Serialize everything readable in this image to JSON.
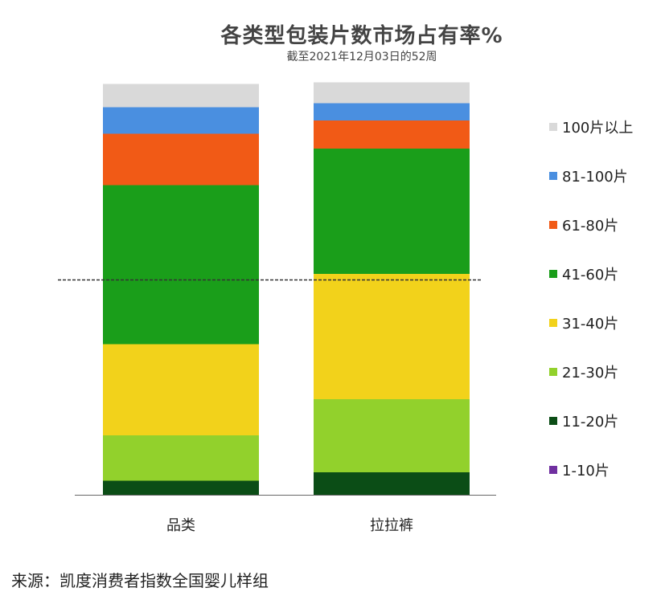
{
  "chart_data": {
    "type": "bar",
    "stacked": true,
    "normalized_percent": true,
    "title": "各类型包装片数市场占有率%",
    "subtitle": "截至2021年12月03日的52周",
    "categories": [
      "品类",
      "拉拉裤"
    ],
    "ylim": [
      0,
      100
    ],
    "grid": false,
    "legend_position": "right",
    "reference_line": {
      "value": 53.5,
      "style": "dashed"
    },
    "series": [
      {
        "name": "1-10片",
        "color": "#7030a0",
        "values": [
          0,
          0
        ]
      },
      {
        "name": "11-20片",
        "color": "#0b4d16",
        "values": [
          3.5,
          5.6
        ]
      },
      {
        "name": "21-30片",
        "color": "#92d12c",
        "values": [
          11.3,
          18.2
        ]
      },
      {
        "name": "31-40片",
        "color": "#f2d21b",
        "values": [
          22.7,
          31.2
        ]
      },
      {
        "name": "41-60片",
        "color": "#1a9e1a",
        "values": [
          39.6,
          31.2
        ]
      },
      {
        "name": "61-80片",
        "color": "#f15a16",
        "values": [
          12.8,
          7.0
        ]
      },
      {
        "name": "81-100片",
        "color": "#4a8fe0",
        "values": [
          6.6,
          4.3
        ]
      },
      {
        "name": "100片以上",
        "color": "#d9d9d9",
        "values": [
          5.8,
          5.2
        ]
      }
    ]
  },
  "footer": {
    "source": "来源：凯度消费者指数全国婴儿样组"
  }
}
